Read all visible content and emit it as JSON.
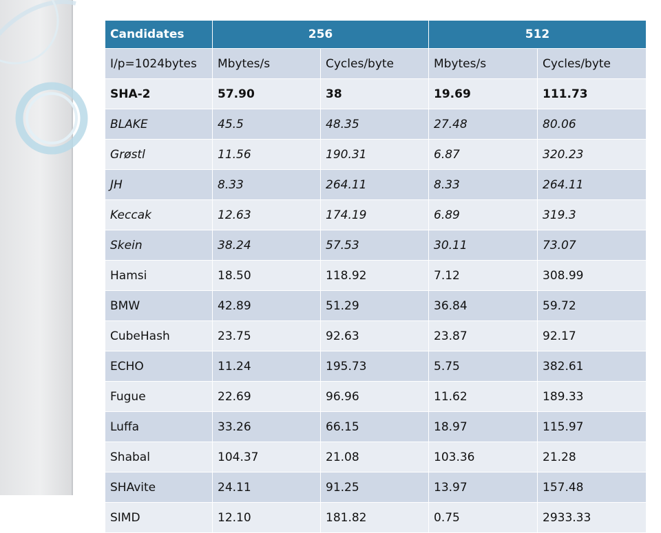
{
  "table": {
    "header": [
      "Candidates",
      "256",
      "512"
    ],
    "subheader": [
      "I/p=1024bytes",
      "Mbytes/s",
      "Cycles/byte",
      "Mbytes/s",
      "Cycles/byte"
    ],
    "rows": [
      {
        "style": "bold",
        "cells": [
          "SHA-2",
          "57.90",
          "38",
          "19.69",
          "111.73"
        ]
      },
      {
        "style": "italic",
        "cells": [
          "BLAKE",
          "45.5",
          "48.35",
          "27.48",
          "80.06"
        ]
      },
      {
        "style": "italic",
        "cells": [
          "Grøstl",
          "11.56",
          "190.31",
          "6.87",
          "320.23"
        ]
      },
      {
        "style": "italic",
        "cells": [
          "JH",
          "8.33",
          "264.11",
          "8.33",
          "264.11"
        ]
      },
      {
        "style": "italic",
        "cells": [
          "Keccak",
          "12.63",
          "174.19",
          "6.89",
          "319.3"
        ]
      },
      {
        "style": "italic",
        "cells": [
          "Skein",
          "38.24",
          "57.53",
          "30.11",
          "73.07"
        ]
      },
      {
        "style": "normal",
        "cells": [
          "Hamsi",
          "18.50",
          "118.92",
          "7.12",
          "308.99"
        ]
      },
      {
        "style": "normal",
        "cells": [
          "BMW",
          "42.89",
          "51.29",
          "36.84",
          "59.72"
        ]
      },
      {
        "style": "normal",
        "cells": [
          "CubeHash",
          "23.75",
          "92.63",
          "23.87",
          "92.17"
        ]
      },
      {
        "style": "normal",
        "cells": [
          "ECHO",
          "11.24",
          "195.73",
          "5.75",
          "382.61"
        ]
      },
      {
        "style": "normal",
        "cells": [
          "Fugue",
          "22.69",
          "96.96",
          "11.62",
          "189.33"
        ]
      },
      {
        "style": "normal",
        "cells": [
          "Luffa",
          "33.26",
          "66.15",
          "18.97",
          "115.97"
        ]
      },
      {
        "style": "normal",
        "cells": [
          "Shabal",
          "104.37",
          "21.08",
          "103.36",
          "21.28"
        ]
      },
      {
        "style": "normal",
        "cells": [
          "SHAvite",
          "24.11",
          "91.25",
          "13.97",
          "157.48"
        ]
      },
      {
        "style": "normal",
        "cells": [
          "SIMD",
          "12.10",
          "181.82",
          "0.75",
          "2933.33"
        ]
      }
    ]
  },
  "colors": {
    "header_bg": "#2c7ca7",
    "row_odd": "#cfd8e6",
    "row_even": "#e9edf3"
  }
}
